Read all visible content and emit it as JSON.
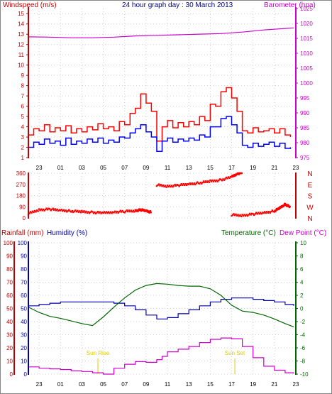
{
  "chart_data": [
    {
      "type": "line",
      "title": "24 hour graph day : 30 March 2013",
      "y_left_label": "Windspeed (m/s)",
      "y_right_label": "Barometer (hpa)",
      "x_ticks": [
        "23",
        "01",
        "03",
        "05",
        "07",
        "09",
        "11",
        "13",
        "15",
        "17",
        "19",
        "21",
        "23"
      ],
      "y_left_ticks": [
        "1",
        "2",
        "3",
        "4",
        "5",
        "6",
        "7",
        "8",
        "9",
        "10",
        "11",
        "12",
        "13",
        "14",
        "15"
      ],
      "y_right_ticks": [
        "975",
        "980",
        "985",
        "990",
        "995",
        "1000",
        "1005",
        "1010",
        "1015",
        "1020",
        "1025"
      ],
      "ylim_left": [
        1,
        15.5
      ],
      "ylim_right": [
        975,
        1025
      ],
      "xlim": [
        0,
        25
      ],
      "grid": true,
      "colors": {
        "gust": "#ff0000",
        "avg": "#0000ff",
        "baro": "#cc00cc"
      },
      "series": [
        {
          "role": "gust",
          "axis": "left",
          "x": [
            0,
            0.5,
            1,
            1.5,
            2,
            2.5,
            3,
            3.5,
            4,
            4.5,
            5,
            5.5,
            6,
            6.5,
            7,
            7.5,
            8,
            8.5,
            9,
            9.5,
            10,
            10.5,
            11,
            11.5,
            12,
            12.5,
            13,
            13.5,
            14,
            14.5,
            15,
            15.5,
            16,
            16.5,
            17,
            17.5,
            18,
            18.5,
            19,
            19.5,
            20,
            20.5,
            21,
            21.5,
            22,
            22.5,
            23,
            23.5,
            24,
            24.5
          ],
          "values": [
            3.2,
            3.8,
            3.6,
            4.2,
            3.5,
            3.9,
            3.6,
            4.1,
            3.4,
            3.8,
            3.5,
            4.0,
            3.7,
            4.3,
            3.8,
            4.0,
            3.6,
            4.5,
            4.2,
            5.3,
            5.8,
            7.2,
            6.3,
            5.5,
            2.6,
            4.0,
            4.6,
            3.9,
            4.4,
            4.0,
            4.5,
            4.2,
            5.0,
            4.6,
            6.2,
            6.0,
            7.4,
            7.8,
            6.8,
            5.5,
            3.6,
            3.4,
            3.9,
            3.5,
            3.6,
            3.8,
            3.4,
            3.8,
            3.2,
            3.0
          ]
        },
        {
          "role": "avg",
          "axis": "left",
          "x": [
            0,
            0.5,
            1,
            1.5,
            2,
            2.5,
            3,
            3.5,
            4,
            4.5,
            5,
            5.5,
            6,
            6.5,
            7,
            7.5,
            8,
            8.5,
            9,
            9.5,
            10,
            10.5,
            11,
            11.5,
            12,
            12.5,
            13,
            13.5,
            14,
            14.5,
            15,
            15.5,
            16,
            16.5,
            17,
            17.5,
            18,
            18.5,
            19,
            19.5,
            20,
            20.5,
            21,
            21.5,
            22,
            22.5,
            23,
            23.5,
            24,
            24.5
          ],
          "values": [
            2.0,
            2.5,
            2.3,
            2.8,
            2.4,
            2.6,
            2.2,
            2.9,
            2.3,
            2.6,
            2.4,
            2.8,
            2.5,
            2.9,
            2.4,
            2.7,
            2.5,
            3.0,
            2.9,
            3.4,
            3.8,
            4.2,
            3.5,
            3.0,
            1.6,
            2.6,
            2.9,
            2.5,
            2.8,
            2.6,
            2.9,
            2.7,
            3.2,
            3.0,
            4.0,
            4.0,
            4.8,
            5.0,
            4.2,
            3.4,
            2.2,
            2.0,
            2.4,
            2.1,
            2.3,
            2.5,
            2.1,
            2.4,
            1.9,
            2.0
          ]
        },
        {
          "role": "baro",
          "axis": "right",
          "x": [
            0,
            2,
            4,
            6,
            8,
            10,
            12,
            14,
            16,
            18,
            20,
            22,
            24,
            24.8
          ],
          "values": [
            1015.5,
            1015.4,
            1015.2,
            1015.2,
            1015.4,
            1015.8,
            1016.0,
            1016.2,
            1016.4,
            1016.6,
            1017.1,
            1017.8,
            1018.3,
            1018.5
          ]
        }
      ]
    },
    {
      "type": "scatter",
      "title": "",
      "y_ticks": [
        "0",
        "90",
        "180",
        "270",
        "360"
      ],
      "y_right_letters": [
        "N",
        "W",
        "S",
        "E",
        "N"
      ],
      "ylim": [
        0,
        360
      ],
      "xlim": [
        0,
        25
      ],
      "colors": {
        "points": "#ff0000"
      },
      "segments": [
        {
          "x": [
            0,
            1,
            2,
            3,
            4,
            5,
            6,
            7,
            8,
            9,
            10,
            10.5,
            11,
            11.5
          ],
          "values": [
            35,
            65,
            70,
            62,
            55,
            50,
            45,
            40,
            48,
            52,
            58,
            65,
            58,
            45
          ]
        },
        {
          "x": [
            12,
            13,
            14,
            15,
            16,
            17,
            18,
            19,
            19.5,
            20
          ],
          "values": [
            265,
            255,
            262,
            272,
            282,
            295,
            305,
            330,
            355,
            365
          ]
        },
        {
          "x": [
            19,
            20,
            21,
            22,
            23,
            23.5,
            24,
            24.5
          ],
          "values": [
            25,
            20,
            30,
            42,
            55,
            80,
            110,
            85
          ]
        }
      ]
    },
    {
      "type": "line",
      "title": "",
      "y_left_labels": [
        "Rainfall (mm)",
        "Humidity (%)"
      ],
      "y_right_labels": [
        "Temperature (°C)",
        "Dew Point (°C)"
      ],
      "y_left_ticks": [
        "0",
        "10",
        "20",
        "30",
        "40",
        "50",
        "60",
        "70",
        "80",
        "90",
        "100"
      ],
      "y_right_ticks": [
        "-10",
        "-8",
        "-6",
        "-4",
        "-2",
        "0",
        "2",
        "4",
        "6",
        "8",
        "10"
      ],
      "ylim_left": [
        0,
        100
      ],
      "ylim_right": [
        -10,
        10
      ],
      "xlim": [
        0,
        25
      ],
      "annotations": [
        {
          "label": "Sun Rise",
          "x": 6.5
        },
        {
          "label": "Sun Set",
          "x": 19.3
        }
      ],
      "colors": {
        "humidity": "#0000aa",
        "temperature": "#006600",
        "dewpoint": "#cc00cc",
        "annotation": "#ddcc00"
      },
      "series": [
        {
          "role": "humidity",
          "axis": "left",
          "x": [
            0,
            1,
            2,
            3,
            4,
            5,
            6,
            7,
            8,
            9,
            10,
            11,
            12,
            13,
            14,
            15,
            16,
            17,
            18,
            19,
            20,
            21,
            22,
            23,
            24,
            24.8
          ],
          "values": [
            52,
            53,
            54,
            55,
            55,
            55,
            55,
            55,
            54,
            52,
            49,
            45,
            42,
            43,
            46,
            49,
            52,
            55,
            57,
            58,
            58,
            57,
            56,
            55,
            53,
            52
          ]
        },
        {
          "role": "temperature",
          "axis": "right",
          "x": [
            0,
            1,
            2,
            3,
            4,
            5,
            6,
            7,
            8,
            9,
            10,
            11,
            12,
            13,
            14,
            15,
            16,
            17,
            18,
            19,
            20,
            21,
            22,
            23,
            24,
            24.8
          ],
          "values": [
            0.2,
            -0.6,
            -1.2,
            -1.5,
            -1.9,
            -2.3,
            -2.6,
            -1.3,
            0.2,
            1.6,
            2.8,
            3.5,
            3.8,
            3.7,
            3.5,
            3.4,
            3.4,
            3.0,
            2.0,
            0.5,
            -0.4,
            -0.6,
            -1.0,
            -1.6,
            -2.3,
            -2.8
          ]
        },
        {
          "role": "dewpoint",
          "axis": "right",
          "x": [
            0,
            1,
            2,
            3,
            4,
            5,
            6,
            7,
            8,
            9,
            10,
            11,
            12,
            12.5,
            13,
            14,
            15,
            16,
            17,
            18,
            18.5,
            19,
            20,
            21,
            22,
            23,
            24,
            24.8
          ],
          "values": [
            -8.9,
            -9.1,
            -9.2,
            -9.3,
            -9.5,
            -9.6,
            -9.8,
            -10.0,
            -9.1,
            -8.5,
            -8.1,
            -8.2,
            -7.8,
            -7.3,
            -6.6,
            -6.2,
            -5.8,
            -5.2,
            -4.7,
            -4.5,
            -4.5,
            -4.6,
            -5.8,
            -7.5,
            -8.8,
            -9.4,
            -9.8,
            -9.9
          ]
        }
      ]
    }
  ]
}
